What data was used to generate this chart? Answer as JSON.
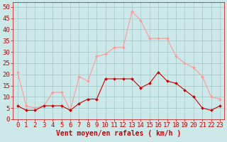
{
  "x": [
    0,
    1,
    2,
    3,
    4,
    5,
    6,
    7,
    8,
    9,
    10,
    11,
    12,
    13,
    14,
    15,
    16,
    17,
    18,
    19,
    20,
    21,
    22,
    23
  ],
  "wind_avg": [
    6,
    4,
    4,
    6,
    6,
    6,
    4,
    7,
    9,
    9,
    18,
    18,
    18,
    18,
    14,
    16,
    21,
    17,
    16,
    13,
    10,
    5,
    4,
    6
  ],
  "wind_gust": [
    21,
    6,
    5,
    6,
    12,
    12,
    4,
    19,
    17,
    28,
    29,
    32,
    32,
    48,
    44,
    36,
    36,
    36,
    28,
    25,
    23,
    19,
    10,
    9
  ],
  "bg_color": "#cce8e8",
  "grid_color": "#aacccc",
  "line_avg_color": "#cc0000",
  "line_gust_color": "#ff9999",
  "xlabel": "Vent moyen/en rafales ( km/h )",
  "ylim": [
    0,
    52
  ],
  "yticks": [
    0,
    5,
    10,
    15,
    20,
    25,
    30,
    35,
    40,
    45,
    50
  ],
  "xticks": [
    0,
    1,
    2,
    3,
    4,
    5,
    6,
    7,
    8,
    9,
    10,
    11,
    12,
    13,
    14,
    15,
    16,
    17,
    18,
    19,
    20,
    21,
    22,
    23
  ],
  "xlabel_color": "#cc0000",
  "tick_color": "#cc0000",
  "xlabel_fontsize": 7,
  "tick_fontsize": 6.5
}
